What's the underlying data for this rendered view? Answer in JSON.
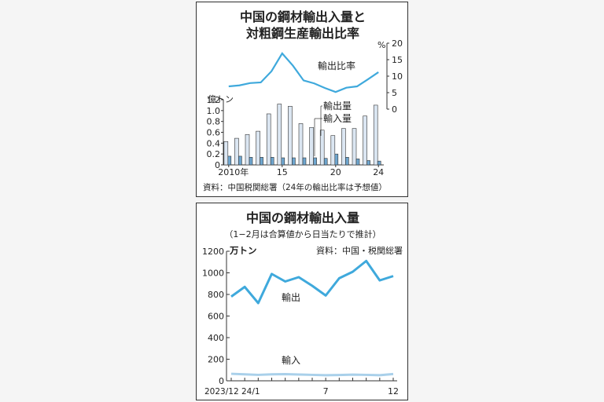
{
  "chart_data": [
    {
      "type": "bar+line",
      "title": "中国の鋼材輸出入量と対粗鋼生産輸出比率",
      "categories": [
        "2010",
        "2011",
        "2012",
        "2013",
        "2014",
        "2015",
        "2016",
        "2017",
        "2018",
        "2019",
        "2020",
        "2021",
        "2022",
        "2023",
        "2024"
      ],
      "x_tick_labels": [
        "2010年",
        "15",
        "20",
        "24"
      ],
      "bar_unit": "億トン",
      "bar_ylim": [
        0,
        1.2
      ],
      "bar_y_ticks": [
        "0",
        "0.2",
        "0.4",
        "0.6",
        "0.8",
        "1.0",
        "1.2"
      ],
      "series": [
        {
          "name": "輸出量",
          "type": "bar",
          "color": "#dbe6f2",
          "values": [
            0.43,
            0.49,
            0.56,
            0.62,
            0.94,
            1.12,
            1.08,
            0.76,
            0.69,
            0.64,
            0.54,
            0.67,
            0.67,
            0.9,
            1.1
          ]
        },
        {
          "name": "輸入量",
          "type": "bar",
          "color": "#6ea6cf",
          "values": [
            0.16,
            0.16,
            0.14,
            0.14,
            0.14,
            0.13,
            0.13,
            0.13,
            0.13,
            0.12,
            0.2,
            0.14,
            0.11,
            0.08,
            0.07
          ]
        },
        {
          "name": "輸出比率",
          "type": "line",
          "color": "#3fa9dc",
          "values": [
            6.9,
            7.2,
            7.9,
            8.1,
            11.5,
            16.9,
            13.2,
            8.7,
            7.8,
            6.4,
            5.2,
            6.5,
            6.9,
            9.0,
            11.2
          ]
        }
      ],
      "line_unit": "%",
      "line_ylim": [
        0,
        20
      ],
      "line_y_ticks": [
        "0",
        "5",
        "10",
        "15",
        "20"
      ],
      "source": "資料：中国税関総署（24年の輸出比率は予想値）"
    },
    {
      "type": "line",
      "title": "中国の鋼材輸出入量",
      "subtitle": "（1−2月は合算値から日当たりで推計）",
      "unit": "万トン",
      "source": "資料：中国・税関総署",
      "ylim": [
        0,
        1200
      ],
      "y_ticks": [
        "0",
        "200",
        "400",
        "600",
        "800",
        "1000",
        "1200"
      ],
      "categories": [
        "2023/12",
        "24/1",
        "24/2",
        "24/3",
        "24/4",
        "24/5",
        "24/6",
        "24/7",
        "24/8",
        "24/9",
        "24/10",
        "24/11",
        "24/12"
      ],
      "x_tick_labels": [
        "2023/12 24/1",
        "7",
        "12"
      ],
      "series": [
        {
          "name": "輸出",
          "color": "#3fa9dc",
          "values": [
            780,
            870,
            720,
            990,
            920,
            960,
            880,
            790,
            950,
            1010,
            1110,
            930,
            970
          ]
        },
        {
          "name": "輸入",
          "color": "#a9d0ea",
          "values": [
            65,
            60,
            55,
            60,
            62,
            58,
            55,
            52,
            54,
            57,
            55,
            52,
            63
          ]
        }
      ]
    }
  ]
}
